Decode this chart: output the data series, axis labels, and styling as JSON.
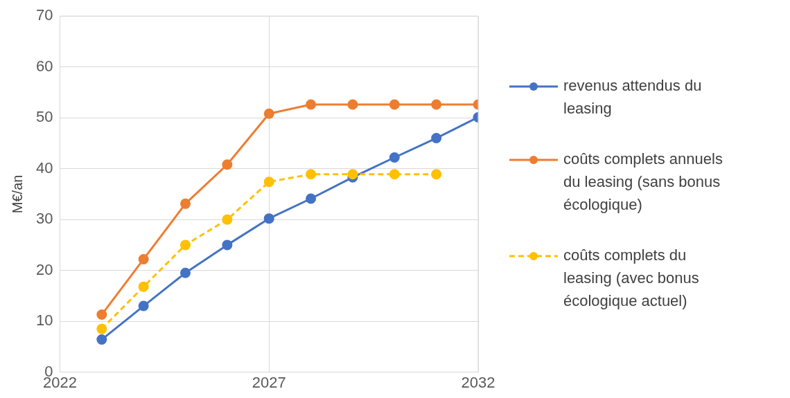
{
  "chart_data": {
    "type": "line",
    "ylabel": "M€/an",
    "x": [
      2023,
      2024,
      2025,
      2026,
      2027,
      2028,
      2029,
      2030,
      2031,
      2032
    ],
    "xlim": [
      2022,
      2032
    ],
    "xticks": [
      2022,
      2027,
      2032
    ],
    "ylim": [
      0,
      70
    ],
    "yticks": [
      0,
      10,
      20,
      30,
      40,
      50,
      60,
      70
    ],
    "grid": true,
    "legend": "right",
    "marker": "circle",
    "series": [
      {
        "name": "revenus attendus du leasing",
        "color": "#4472c4",
        "values": [
          6.4,
          13.0,
          19.5,
          25.0,
          30.2,
          34.1,
          38.3,
          42.2,
          46.0,
          50.1
        ]
      },
      {
        "name": "coûts complets annuels du leasing (sans bonus écologique)",
        "color": "#ed7d31",
        "values": [
          11.3,
          22.2,
          33.1,
          40.8,
          50.8,
          52.6,
          52.6,
          52.6,
          52.6,
          52.6
        ]
      },
      {
        "name": "coûts complets du leasing (avec bonus écologique actuel)",
        "color": "#ffc000",
        "line_style": "dashed",
        "x": [
          2023,
          2024,
          2025,
          2026,
          2027,
          2028,
          2029,
          2030,
          2031
        ],
        "values": [
          8.5,
          16.8,
          25.0,
          30.0,
          37.4,
          38.9,
          38.9,
          38.9,
          38.9
        ]
      }
    ]
  }
}
